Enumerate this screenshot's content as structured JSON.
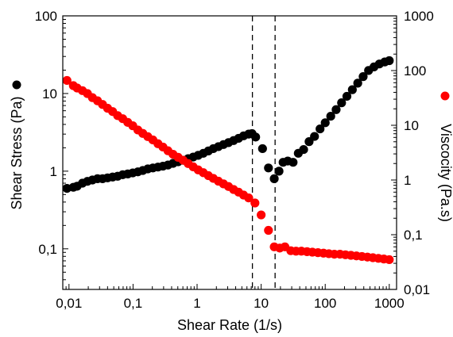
{
  "chart_data": {
    "type": "scatter",
    "xlabel": "Shear Rate (1/s)",
    "ylabel_left": "Shear Stress (Pa)",
    "ylabel_right": "Viscocity (Pa.s)",
    "x_scale": "log",
    "y_left_scale": "log",
    "y_right_scale": "log",
    "xlim": [
      0.008,
      1300
    ],
    "ylim_left": [
      0.03,
      100
    ],
    "ylim_right": [
      0.01,
      1000
    ],
    "x_ticks": [
      {
        "value": 0.01,
        "label": "0,01"
      },
      {
        "value": 0.1,
        "label": "0,1"
      },
      {
        "value": 1,
        "label": "1"
      },
      {
        "value": 10,
        "label": "10"
      },
      {
        "value": 100,
        "label": "100"
      },
      {
        "value": 1000,
        "label": "1000"
      }
    ],
    "y_left_ticks": [
      {
        "value": 0.1,
        "label": "0,1"
      },
      {
        "value": 1,
        "label": "1"
      },
      {
        "value": 10,
        "label": "10"
      },
      {
        "value": 100,
        "label": "100"
      }
    ],
    "y_right_ticks": [
      {
        "value": 0.01,
        "label": "0,01"
      },
      {
        "value": 0.1,
        "label": "0,1"
      },
      {
        "value": 1,
        "label": "1"
      },
      {
        "value": 10,
        "label": "10"
      },
      {
        "value": 100,
        "label": "100"
      },
      {
        "value": 1000,
        "label": "1000"
      }
    ],
    "vertical_lines": [
      7.3,
      16.5
    ],
    "series": [
      {
        "axis": "left",
        "color": "#000000",
        "x": [
          0.0093,
          0.0117,
          0.0134,
          0.0162,
          0.0194,
          0.0232,
          0.0279,
          0.0334,
          0.04,
          0.048,
          0.0575,
          0.069,
          0.0827,
          0.099,
          0.119,
          0.142,
          0.17,
          0.204,
          0.245,
          0.293,
          0.351,
          0.421,
          0.505,
          0.605,
          0.725,
          0.869,
          1.04,
          1.25,
          1.5,
          1.79,
          2.15,
          2.58,
          3.09,
          3.71,
          4.44,
          5.32,
          6.38,
          7.2,
          8.2,
          10.5,
          13.0,
          16.0,
          19.0,
          22.0,
          26.0,
          31.5,
          38.0,
          46.0,
          56.0,
          68.0,
          83.0,
          100.0,
          122.0,
          148.0,
          180.0,
          218.0,
          265.0,
          322.0,
          391.0,
          475.0,
          577.0,
          700.0,
          850.0,
          1000.0
        ],
        "y": [
          0.6,
          0.62,
          0.64,
          0.7,
          0.74,
          0.77,
          0.8,
          0.8,
          0.82,
          0.84,
          0.86,
          0.9,
          0.92,
          0.95,
          0.98,
          1.02,
          1.07,
          1.1,
          1.13,
          1.16,
          1.2,
          1.26,
          1.32,
          1.38,
          1.45,
          1.52,
          1.6,
          1.7,
          1.82,
          1.95,
          2.07,
          2.2,
          2.33,
          2.48,
          2.65,
          2.85,
          3.0,
          3.05,
          2.75,
          1.95,
          1.1,
          0.8,
          1.0,
          1.3,
          1.35,
          1.3,
          1.7,
          1.9,
          2.4,
          2.8,
          3.5,
          4.2,
          5.1,
          6.2,
          7.6,
          9.2,
          11.2,
          13.6,
          16.5,
          19.8,
          22.0,
          24.0,
          25.5,
          26.5
        ]
      },
      {
        "axis": "right",
        "color": "#ff0000",
        "x": [
          0.0093,
          0.0117,
          0.0134,
          0.0162,
          0.0194,
          0.0232,
          0.0279,
          0.0334,
          0.04,
          0.048,
          0.0575,
          0.069,
          0.0827,
          0.099,
          0.119,
          0.142,
          0.17,
          0.204,
          0.245,
          0.293,
          0.351,
          0.421,
          0.505,
          0.605,
          0.725,
          0.869,
          1.04,
          1.25,
          1.5,
          1.79,
          2.15,
          2.58,
          3.09,
          3.71,
          4.44,
          5.32,
          6.38,
          8.0,
          10.0,
          13.0,
          16.0,
          19.5,
          23.5,
          29.0,
          35.0,
          42.5,
          52.0,
          63.0,
          77.0,
          94.0,
          114.0,
          139.0,
          170.0,
          207.0,
          252.0,
          307.0,
          374.0,
          456.0,
          555.0,
          676.0,
          823.0,
          1000.0
        ],
        "y": [
          66.0,
          53.0,
          48.0,
          43.0,
          38.0,
          32.0,
          28.0,
          24.0,
          20.5,
          17.8,
          15.0,
          13.2,
          11.3,
          9.8,
          8.2,
          7.1,
          6.2,
          5.4,
          4.6,
          4.0,
          3.42,
          2.95,
          2.6,
          2.3,
          2.0,
          1.74,
          1.53,
          1.36,
          1.2,
          1.07,
          0.95,
          0.85,
          0.76,
          0.67,
          0.6,
          0.53,
          0.47,
          0.38,
          0.23,
          0.12,
          0.06,
          0.057,
          0.06,
          0.051,
          0.05,
          0.05,
          0.049,
          0.048,
          0.047,
          0.046,
          0.045,
          0.044,
          0.044,
          0.043,
          0.042,
          0.041,
          0.04,
          0.039,
          0.038,
          0.037,
          0.036,
          0.035
        ]
      }
    ],
    "legend_markers": [
      {
        "axis": "left",
        "color": "#000000"
      },
      {
        "axis": "right",
        "color": "#ff0000"
      }
    ]
  }
}
